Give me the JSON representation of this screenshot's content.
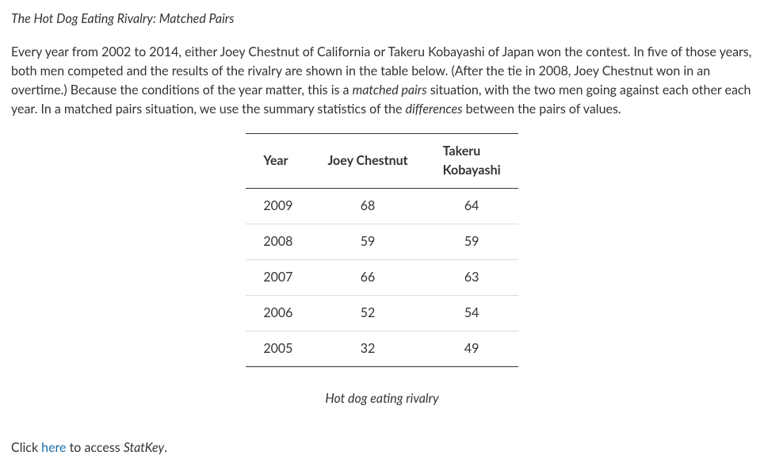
{
  "title": "The Hot Dog Eating Rivalry: Matched Pairs",
  "paragraph": {
    "p1": "Every year from 2002 to 2014, either Joey Chestnut of California or Takeru Kobayashi of Japan won the contest. In five of those years, both men competed and the results of the rivalry are shown in the table below. (After the tie in 2008, Joey Chestnut won in an overtime.) Because the conditions of the year matter, this is a ",
    "em1": "matched pairs",
    "p2": " situation, with the two men going against each other each year. In a matched pairs situation, we use the summary statistics of the ",
    "em2": "differences",
    "p3": " between the pairs of values."
  },
  "table": {
    "columns": [
      "Year",
      "Joey Chestnut",
      "Takeru\nKobayashi"
    ],
    "rows": [
      [
        "2009",
        "68",
        "64"
      ],
      [
        "2008",
        "59",
        "59"
      ],
      [
        "2007",
        "66",
        "63"
      ],
      [
        "2006",
        "52",
        "54"
      ],
      [
        "2005",
        "32",
        "49"
      ]
    ],
    "header_border_color": "#333333",
    "row_border_color": "#dddddd",
    "cell_padding": "10px 22px",
    "font_size": 16
  },
  "caption": "Hot dog eating rivalry",
  "footer": {
    "pre": "Click ",
    "link": "here",
    "post": " to access ",
    "statkey": "StatKey",
    "period": "."
  },
  "colors": {
    "text": "#333333",
    "link": "#1f6ea8",
    "background": "#ffffff"
  }
}
